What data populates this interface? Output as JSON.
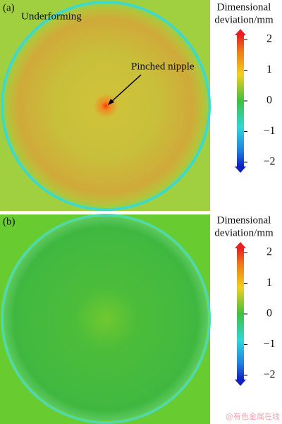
{
  "panels": [
    {
      "label": "(a)",
      "annotations": [
        "Underforming",
        "Pinched nipple"
      ],
      "colorbar": {
        "title": [
          "Dimensional",
          "deviation/mm"
        ],
        "ticks": [
          "2",
          "1",
          "0",
          "−1",
          "−2"
        ]
      }
    },
    {
      "label": "(b)",
      "colorbar": {
        "title": [
          "Dimensional",
          "deviation/mm"
        ],
        "ticks": [
          "2",
          "1",
          "0",
          "−1",
          "−2"
        ]
      }
    }
  ],
  "watermark": "@有色金属在线"
}
